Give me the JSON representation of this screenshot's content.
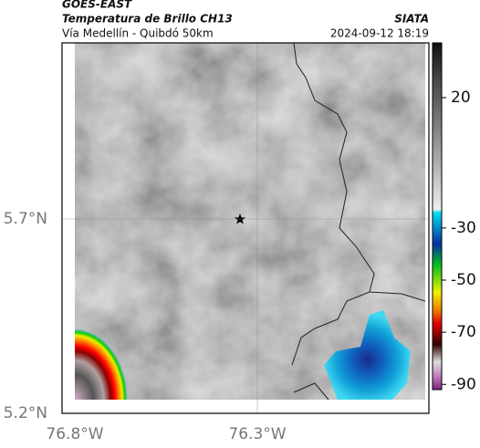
{
  "header": {
    "source": "GOES-EAST",
    "title": "Temperatura de Brillo CH13",
    "agency": "SIATA",
    "subtitle": "Vía Medellín - Quibdó 50km",
    "timestamp": "2024-09-12 18:19"
  },
  "map": {
    "xlim": [
      -76.8,
      -75.83
    ],
    "ylim": [
      5.2,
      6.153
    ],
    "xticks": [
      {
        "value": -76.8,
        "label": "76.8°W"
      },
      {
        "value": -76.3,
        "label": "76.3°W"
      }
    ],
    "yticks": [
      {
        "value": 5.2,
        "label": "5.2°N"
      },
      {
        "value": 5.7,
        "label": "5.7°N"
      }
    ],
    "grid": true
  },
  "colorbar": {
    "lim": [
      41,
      -92
    ],
    "ticks": [
      20,
      -30,
      -50,
      -70,
      -90
    ]
  }
}
